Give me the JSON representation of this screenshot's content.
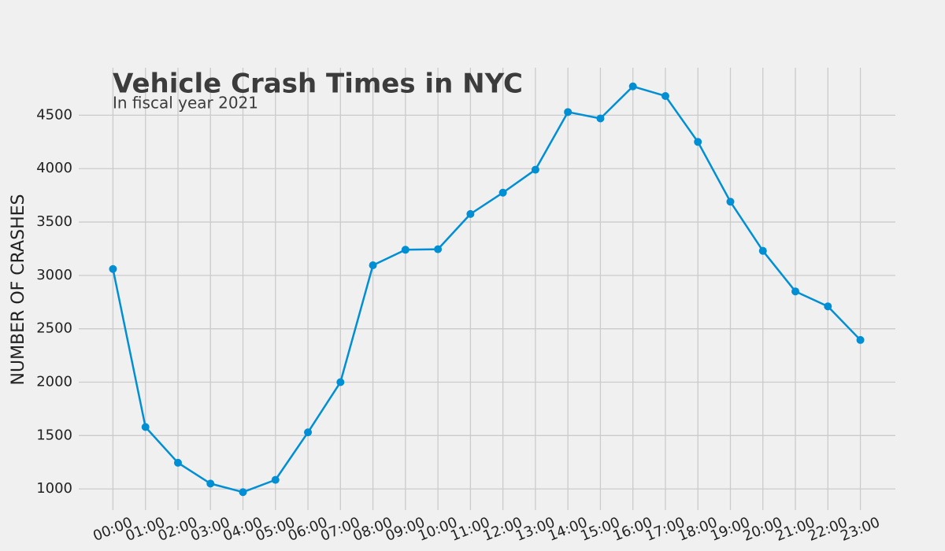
{
  "chart_data": {
    "type": "line",
    "title": "Vehicle Crash Times in NYC",
    "subtitle": "In fiscal year 2021",
    "y_label": "NUMBER OF CRASHES",
    "categories": [
      "00:00",
      "01:00",
      "02:00",
      "03:00",
      "04:00",
      "05:00",
      "06:00",
      "07:00",
      "08:00",
      "09:00",
      "10:00",
      "11:00",
      "12:00",
      "13:00",
      "14:00",
      "15:00",
      "16:00",
      "17:00",
      "18:00",
      "19:00",
      "20:00",
      "21:00",
      "22:00",
      "23:00"
    ],
    "values": [
      3060,
      1580,
      1245,
      1050,
      970,
      1085,
      1530,
      2000,
      3095,
      3240,
      3245,
      3575,
      3775,
      3990,
      4530,
      4470,
      4770,
      4680,
      4250,
      3690,
      3230,
      2850,
      2710,
      2395
    ],
    "color": "#008fd5",
    "ylim": [
      780,
      4960
    ],
    "yticks": [
      1000,
      1500,
      2000,
      2500,
      3000,
      3500,
      4000,
      4500
    ],
    "grid": true
  }
}
